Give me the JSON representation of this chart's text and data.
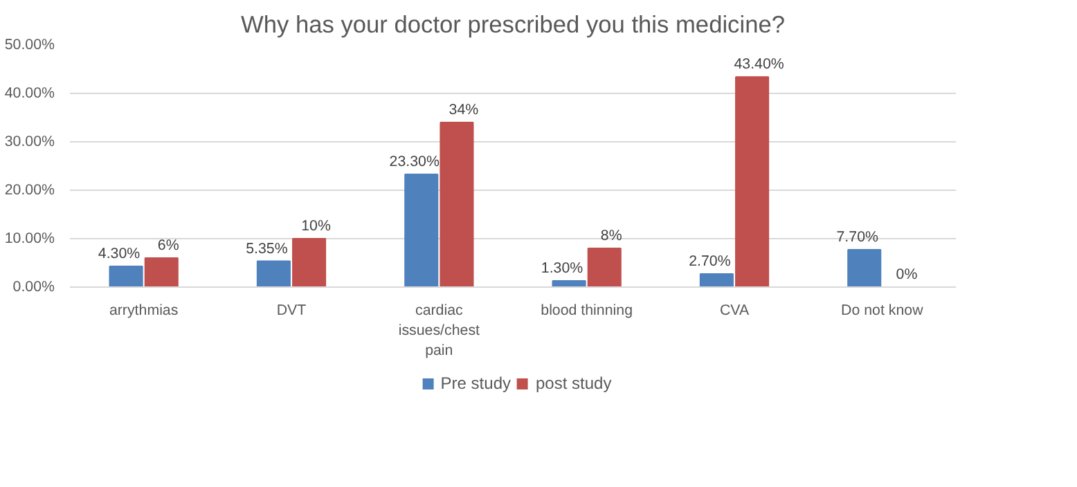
{
  "chart_data": {
    "type": "bar",
    "title": "Why has your doctor prescribed you this medicine?",
    "categories": [
      "arrythmias",
      "DVT",
      "cardiac issues/chest pain",
      "blood thinning",
      "CVA",
      "Do not know"
    ],
    "series": [
      {
        "name": "Pre study",
        "color": "#4f81bd",
        "values": [
          4.3,
          5.35,
          23.3,
          1.3,
          2.7,
          7.7
        ],
        "value_labels": [
          "4.30%",
          "5.35%",
          "23.30%",
          "1.30%",
          "2.70%",
          "7.70%"
        ]
      },
      {
        "name": "post study",
        "color": "#c0504d",
        "values": [
          6,
          10,
          34,
          8,
          43.4,
          0
        ],
        "value_labels": [
          "6%",
          "10%",
          "34%",
          "8%",
          "43.40%",
          "0%"
        ]
      }
    ],
    "ylim": [
      0,
      50
    ],
    "yticks": [
      {
        "value": 0,
        "label": "0.00%"
      },
      {
        "value": 10,
        "label": "10.00%"
      },
      {
        "value": 20,
        "label": "20.00%"
      },
      {
        "value": 30,
        "label": "30.00%"
      },
      {
        "value": 40,
        "label": "40.00%"
      },
      {
        "value": 50,
        "label": "50.00%"
      }
    ],
    "grid": "y",
    "legend": "bottom"
  }
}
